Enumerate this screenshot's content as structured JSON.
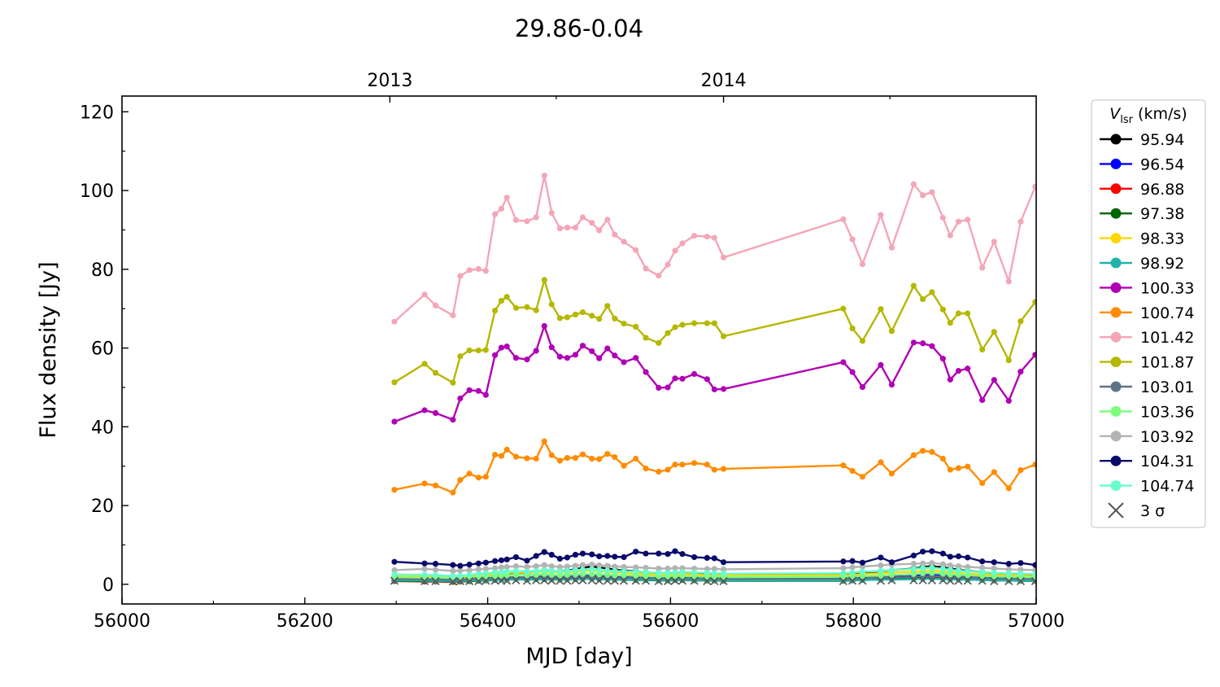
{
  "chart_data": {
    "type": "line",
    "title": "29.86-0.04",
    "xlabel": "MJD [day]",
    "ylabel": "Flux density [Jy]",
    "xlim": [
      56000,
      57000
    ],
    "ylim": [
      -5,
      124
    ],
    "xticks": [
      56000,
      56200,
      56400,
      56600,
      56800,
      57000
    ],
    "yticks": [
      0,
      20,
      40,
      60,
      80,
      100,
      120
    ],
    "top_axis": {
      "ticks": [
        {
          "x": 56293,
          "label": "2013"
        },
        {
          "x": 56658,
          "label": "2014"
        }
      ]
    },
    "legend": {
      "title_italic": "V",
      "title_sub": "lsr",
      "title_rest": " (km/s)",
      "placement": "outside-right",
      "sigma_label": "3 σ"
    },
    "x": [
      56298,
      56331,
      56343,
      56362,
      56370,
      56380,
      56390,
      56398,
      56408,
      56415,
      56421,
      56431,
      56443,
      56453,
      56462,
      56470,
      56479,
      56487,
      56496,
      56504,
      56514,
      56522,
      56531,
      56539,
      56549,
      56562,
      56573,
      56587,
      56597,
      56605,
      56613,
      56626,
      56640,
      56648,
      56658,
      56789,
      56799,
      56810,
      56830,
      56842,
      56866,
      56876,
      56886,
      56898,
      56906,
      56915,
      56925,
      56941,
      56954,
      56970,
      56983,
      56999
    ],
    "series": [
      {
        "name": "95.94",
        "color": "#000000",
        "values": [
          1.6,
          1.5,
          1.4,
          1.2,
          1.3,
          1.5,
          1.7,
          2.0,
          2.3,
          2.5,
          2.7,
          3.0,
          2.8,
          3.2,
          3.6,
          3.4,
          3.3,
          3.5,
          3.8,
          4.2,
          4.5,
          4.3,
          4.0,
          3.7,
          3.5,
          3.3,
          3.0,
          2.8,
          2.7,
          2.9,
          3.0,
          2.8,
          2.6,
          2.5,
          2.3,
          2.5,
          2.8,
          3.0,
          3.3,
          3.6,
          4.0,
          4.4,
          4.6,
          4.3,
          4.0,
          3.7,
          3.4,
          3.1,
          2.8,
          2.6,
          2.4,
          2.2
        ]
      },
      {
        "name": "96.54",
        "color": "#0000ff",
        "values": [
          1.2,
          1.1,
          1.0,
          0.9,
          1.0,
          1.1,
          1.2,
          1.3,
          1.5,
          1.6,
          1.7,
          1.8,
          1.7,
          1.9,
          2.0,
          1.9,
          1.8,
          1.9,
          2.0,
          2.1,
          2.2,
          2.1,
          2.0,
          1.9,
          1.8,
          1.7,
          1.6,
          1.5,
          1.5,
          1.6,
          1.6,
          1.5,
          1.4,
          1.4,
          1.3,
          1.4,
          1.5,
          1.6,
          1.7,
          1.9,
          2.1,
          2.3,
          2.4,
          2.2,
          2.0,
          1.9,
          1.8,
          1.7,
          1.6,
          1.5,
          1.4,
          1.3
        ]
      },
      {
        "name": "96.88",
        "color": "#ff0000",
        "values": [
          0.8,
          0.7,
          0.7,
          0.6,
          0.7,
          0.8,
          0.9,
          1.0,
          1.1,
          1.2,
          1.2,
          1.3,
          1.2,
          1.3,
          1.4,
          1.3,
          1.3,
          1.4,
          1.5,
          1.5,
          1.6,
          1.5,
          1.4,
          1.4,
          1.3,
          1.2,
          1.2,
          1.1,
          1.1,
          1.2,
          1.2,
          1.1,
          1.0,
          1.0,
          1.0,
          1.0,
          1.1,
          1.2,
          1.3,
          1.4,
          1.6,
          1.7,
          1.8,
          1.7,
          1.5,
          1.4,
          1.3,
          1.2,
          1.1,
          1.0,
          1.0,
          0.9
        ]
      },
      {
        "name": "97.38",
        "color": "#006400",
        "values": [
          0.9,
          0.8,
          0.8,
          0.7,
          0.8,
          0.8,
          0.9,
          1.0,
          1.1,
          1.2,
          1.2,
          1.3,
          1.2,
          1.3,
          1.3,
          1.3,
          1.2,
          1.3,
          1.3,
          1.4,
          1.4,
          1.3,
          1.3,
          1.2,
          1.2,
          1.1,
          1.1,
          1.0,
          1.0,
          1.1,
          1.1,
          1.0,
          1.0,
          1.0,
          0.9,
          0.9,
          1.0,
          1.1,
          1.2,
          1.3,
          1.4,
          1.5,
          1.5,
          1.4,
          1.3,
          1.3,
          1.2,
          1.1,
          1.0,
          1.0,
          0.9,
          0.9
        ]
      },
      {
        "name": "98.33",
        "color": "#ffd700",
        "values": [
          2.2,
          2.1,
          2.0,
          1.8,
          1.9,
          2.0,
          2.2,
          2.4,
          2.6,
          2.8,
          2.9,
          3.0,
          2.9,
          3.1,
          3.3,
          3.1,
          3.0,
          3.1,
          3.2,
          3.4,
          3.5,
          3.3,
          3.2,
          3.0,
          2.9,
          2.7,
          2.6,
          2.4,
          2.4,
          2.5,
          2.6,
          2.5,
          2.3,
          2.3,
          2.2,
          2.3,
          2.4,
          2.6,
          2.8,
          3.0,
          3.2,
          3.4,
          3.5,
          3.3,
          3.1,
          2.9,
          2.7,
          2.5,
          2.4,
          2.3,
          2.2,
          2.1
        ]
      },
      {
        "name": "98.92",
        "color": "#20b2aa",
        "values": [
          1.0,
          1.0,
          0.9,
          0.9,
          0.9,
          1.0,
          1.0,
          1.1,
          1.2,
          1.2,
          1.3,
          1.3,
          1.3,
          1.3,
          1.4,
          1.3,
          1.3,
          1.3,
          1.4,
          1.4,
          1.4,
          1.4,
          1.3,
          1.3,
          1.3,
          1.2,
          1.2,
          1.1,
          1.1,
          1.2,
          1.2,
          1.1,
          1.1,
          1.1,
          1.0,
          1.0,
          1.1,
          1.1,
          1.2,
          1.2,
          1.3,
          1.4,
          1.4,
          1.3,
          1.3,
          1.2,
          1.2,
          1.1,
          1.1,
          1.0,
          1.0,
          1.0
        ]
      },
      {
        "name": "100.33",
        "color": "#b000b5",
        "values": [
          41.3,
          44.2,
          43.5,
          41.8,
          47.2,
          49.3,
          49.1,
          48.1,
          58.2,
          60.1,
          60.4,
          57.5,
          57.1,
          59.3,
          65.6,
          60.2,
          57.8,
          57.5,
          58.3,
          60.6,
          59.2,
          57.4,
          59.9,
          58.1,
          56.4,
          57.5,
          53.9,
          49.9,
          50.0,
          52.3,
          52.2,
          53.4,
          52.1,
          49.5,
          49.6,
          56.4,
          53.9,
          50.1,
          55.7,
          50.7,
          61.4,
          61.2,
          60.5,
          57.3,
          52.0,
          54.2,
          54.8,
          46.8,
          51.9,
          46.6,
          54.0,
          58.3
        ]
      },
      {
        "name": "100.74",
        "color": "#ff8c00",
        "values": [
          24.0,
          25.6,
          25.1,
          23.3,
          26.5,
          28.1,
          27.1,
          27.3,
          32.9,
          32.6,
          34.2,
          32.4,
          32.0,
          31.9,
          36.3,
          32.8,
          31.4,
          32.1,
          32.1,
          33.0,
          31.9,
          31.8,
          33.1,
          32.3,
          30.1,
          31.9,
          29.4,
          28.6,
          29.1,
          30.4,
          30.4,
          30.8,
          30.4,
          29.1,
          29.3,
          30.2,
          28.8,
          27.3,
          31.0,
          28.1,
          32.8,
          33.9,
          33.6,
          31.9,
          29.1,
          29.5,
          29.9,
          25.7,
          28.5,
          24.4,
          29.0,
          30.4
        ]
      },
      {
        "name": "101.42",
        "color": "#f4a6b7",
        "values": [
          66.7,
          73.6,
          70.8,
          68.3,
          78.3,
          79.8,
          80.1,
          79.6,
          94.0,
          95.4,
          98.2,
          92.5,
          92.2,
          93.2,
          103.8,
          94.3,
          90.4,
          90.6,
          90.6,
          93.2,
          91.8,
          89.9,
          92.6,
          88.8,
          87.0,
          84.9,
          80.2,
          78.4,
          81.2,
          84.7,
          86.6,
          88.5,
          88.3,
          88.0,
          83.0,
          92.7,
          87.6,
          81.3,
          93.8,
          85.5,
          101.6,
          98.8,
          99.6,
          93.1,
          88.6,
          92.1,
          92.6,
          80.4,
          87.0,
          76.9,
          92.1,
          101.0
        ]
      },
      {
        "name": "101.87",
        "color": "#b5b800",
        "values": [
          51.3,
          56.0,
          53.7,
          51.2,
          57.9,
          59.4,
          59.4,
          59.5,
          69.5,
          72.0,
          73.0,
          70.2,
          70.4,
          69.6,
          77.3,
          71.1,
          67.6,
          67.8,
          68.5,
          69.1,
          68.2,
          67.4,
          70.7,
          67.5,
          66.2,
          65.4,
          62.6,
          61.3,
          63.8,
          65.3,
          65.9,
          66.3,
          66.3,
          66.3,
          63.0,
          70.0,
          65.0,
          61.8,
          69.9,
          64.3,
          75.8,
          72.4,
          74.2,
          69.8,
          66.4,
          68.8,
          68.8,
          59.6,
          64.1,
          56.9,
          66.8,
          71.7
        ]
      },
      {
        "name": "103.01",
        "color": "#5f7286",
        "values": [
          1.4,
          1.3,
          1.3,
          1.2,
          1.2,
          1.3,
          1.4,
          1.5,
          1.6,
          1.7,
          1.7,
          1.8,
          1.7,
          1.8,
          1.9,
          1.8,
          1.7,
          1.8,
          1.8,
          1.9,
          1.9,
          1.8,
          1.8,
          1.7,
          1.7,
          1.6,
          1.6,
          1.5,
          1.5,
          1.5,
          1.6,
          1.5,
          1.5,
          1.4,
          1.4,
          1.4,
          1.5,
          1.6,
          1.7,
          1.8,
          1.9,
          2.0,
          2.1,
          2.0,
          1.9,
          1.8,
          1.7,
          1.6,
          1.5,
          1.5,
          1.4,
          1.4
        ]
      },
      {
        "name": "103.36",
        "color": "#7dfc7d",
        "values": [
          1.8,
          1.7,
          1.7,
          1.6,
          1.6,
          1.7,
          1.8,
          2.0,
          2.1,
          2.2,
          2.3,
          2.4,
          2.3,
          2.4,
          2.6,
          2.4,
          2.3,
          2.4,
          2.5,
          2.6,
          2.6,
          2.5,
          2.4,
          2.3,
          2.3,
          2.2,
          2.1,
          2.0,
          2.0,
          2.1,
          2.1,
          2.0,
          1.9,
          1.9,
          1.8,
          1.9,
          2.0,
          2.1,
          2.2,
          2.4,
          2.6,
          2.8,
          2.9,
          2.7,
          2.5,
          2.4,
          2.3,
          2.1,
          2.0,
          1.9,
          1.8,
          1.8
        ]
      },
      {
        "name": "103.92",
        "color": "#b3b3b3",
        "values": [
          3.6,
          3.9,
          3.7,
          3.4,
          3.5,
          3.6,
          3.8,
          3.9,
          4.1,
          4.3,
          4.4,
          4.6,
          4.4,
          4.6,
          4.9,
          4.6,
          4.4,
          4.5,
          4.7,
          4.9,
          5.0,
          4.8,
          4.7,
          4.5,
          4.4,
          4.3,
          4.2,
          4.0,
          4.0,
          4.1,
          4.1,
          4.0,
          3.9,
          3.9,
          3.8,
          4.1,
          4.3,
          4.5,
          4.8,
          5.0,
          5.2,
          5.3,
          5.4,
          5.1,
          4.8,
          4.6,
          4.4,
          4.2,
          4.0,
          3.8,
          3.7,
          3.6
        ]
      },
      {
        "name": "104.31",
        "color": "#0a0a6b",
        "values": [
          5.7,
          5.3,
          5.2,
          4.9,
          4.7,
          5.0,
          5.3,
          5.5,
          5.9,
          6.1,
          6.3,
          6.9,
          6.0,
          7.2,
          8.2,
          7.5,
          6.5,
          6.8,
          7.5,
          7.8,
          7.6,
          7.1,
          7.2,
          7.0,
          6.9,
          8.3,
          7.8,
          7.8,
          7.7,
          8.4,
          7.7,
          6.9,
          6.7,
          6.6,
          5.6,
          5.8,
          5.9,
          5.5,
          6.8,
          5.6,
          7.3,
          8.3,
          8.4,
          7.8,
          7.0,
          7.1,
          6.8,
          5.8,
          5.6,
          5.2,
          5.4,
          4.9
        ]
      },
      {
        "name": "104.74",
        "color": "#66ffcc",
        "values": [
          2.5,
          2.4,
          2.3,
          2.1,
          2.2,
          2.4,
          2.6,
          2.8,
          3.0,
          3.1,
          3.2,
          3.4,
          3.2,
          3.4,
          3.6,
          3.4,
          3.3,
          3.4,
          3.6,
          3.7,
          3.8,
          3.6,
          3.5,
          3.4,
          3.3,
          3.2,
          3.1,
          2.9,
          2.9,
          3.0,
          3.1,
          3.0,
          2.9,
          2.8,
          2.7,
          2.8,
          3.0,
          3.2,
          3.4,
          3.6,
          3.9,
          4.1,
          4.2,
          3.9,
          3.7,
          3.5,
          3.3,
          3.1,
          2.9,
          2.8,
          2.7,
          2.6
        ]
      }
    ],
    "sigma_series": {
      "name": "3 σ",
      "color": "#555555",
      "values": [
        0.9,
        0.8,
        0.8,
        0.7,
        0.8,
        0.8,
        0.8,
        0.9,
        0.9,
        0.9,
        0.9,
        1.0,
        0.9,
        1.0,
        1.0,
        0.9,
        0.9,
        0.9,
        1.0,
        1.0,
        1.0,
        0.9,
        0.9,
        0.9,
        0.9,
        0.9,
        0.9,
        0.8,
        0.8,
        0.9,
        0.9,
        0.9,
        0.8,
        0.8,
        0.8,
        0.8,
        0.9,
        0.9,
        0.9,
        1.0,
        1.0,
        1.0,
        1.0,
        1.0,
        0.9,
        0.9,
        0.9,
        0.9,
        0.8,
        0.8,
        0.8,
        0.8
      ]
    }
  }
}
